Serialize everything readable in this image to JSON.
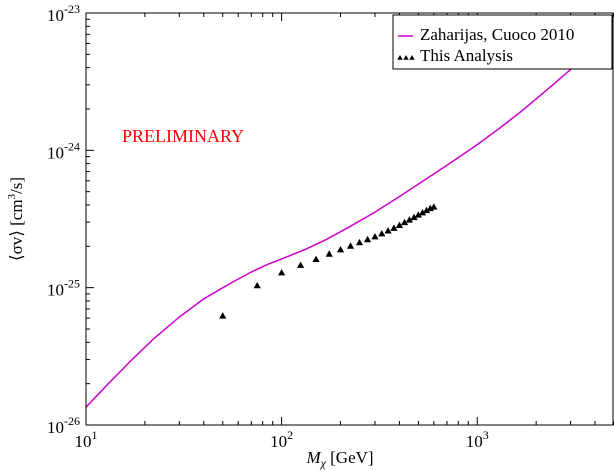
{
  "chart_data": {
    "type": "scatter",
    "xscale": "log",
    "yscale": "log",
    "xlim": [
      10,
      5000
    ],
    "ylim": [
      1e-26,
      1e-23
    ],
    "grid": false,
    "x_ticks": [
      {
        "value": 10,
        "base": "10",
        "exp": "1"
      },
      {
        "value": 100,
        "base": "10",
        "exp": "2"
      },
      {
        "value": 1000,
        "base": "10",
        "exp": "3"
      }
    ],
    "y_ticks": [
      {
        "value": 1e-26,
        "base": "10",
        "exp": "-26"
      },
      {
        "value": 1e-25,
        "base": "10",
        "exp": "-25"
      },
      {
        "value": 1e-24,
        "base": "10",
        "exp": "-24"
      },
      {
        "value": 1e-23,
        "base": "10",
        "exp": "-23"
      }
    ],
    "xlabel": {
      "sym": "M",
      "sub": "χ",
      "unit": " [GeV]"
    },
    "ylabel": {
      "pre": "⟨σv⟩ [cm",
      "sup": "3",
      "post": "/s]"
    },
    "legend_position": "top-right",
    "annotation": {
      "text": "PRELIMINARY",
      "color": "#ff0000"
    },
    "series": [
      {
        "name": "Zaharijas, Cuoco 2010",
        "kind": "line",
        "color": "#cc00cc",
        "x": [
          10,
          13,
          17,
          22,
          30,
          40,
          55,
          70,
          85,
          100,
          130,
          170,
          220,
          300,
          400,
          550,
          700,
          850,
          1000,
          1300,
          1700,
          2200,
          2700,
          3200,
          3600
        ],
        "y": [
          1.35e-26,
          2e-26,
          2.95e-26,
          4.2e-26,
          6.1e-26,
          8.3e-26,
          1.08e-25,
          1.3e-25,
          1.48e-25,
          1.62e-25,
          1.88e-25,
          2.25e-25,
          2.75e-25,
          3.55e-25,
          4.6e-25,
          6.2e-25,
          7.8e-25,
          9.4e-25,
          1.1e-24,
          1.45e-24,
          1.95e-24,
          2.65e-24,
          3.4e-24,
          4.2e-24,
          4.9e-24
        ]
      },
      {
        "name": "This Analysis",
        "kind": "marker",
        "marker": "triangle",
        "color": "#000000",
        "x": [
          50,
          75,
          100,
          125,
          150,
          175,
          200,
          225,
          250,
          275,
          300,
          325,
          350,
          375,
          400,
          425,
          450,
          475,
          500,
          525,
          550,
          575,
          600
        ],
        "y": [
          6.2e-26,
          1.03e-25,
          1.28e-25,
          1.45e-25,
          1.6e-25,
          1.75e-25,
          1.88e-25,
          2e-25,
          2.12e-25,
          2.23e-25,
          2.34e-25,
          2.46e-25,
          2.58e-25,
          2.7e-25,
          2.83e-25,
          2.97e-25,
          3.1e-25,
          3.23e-25,
          3.37e-25,
          3.5e-25,
          3.63e-25,
          3.76e-25,
          3.85e-25
        ]
      }
    ]
  }
}
